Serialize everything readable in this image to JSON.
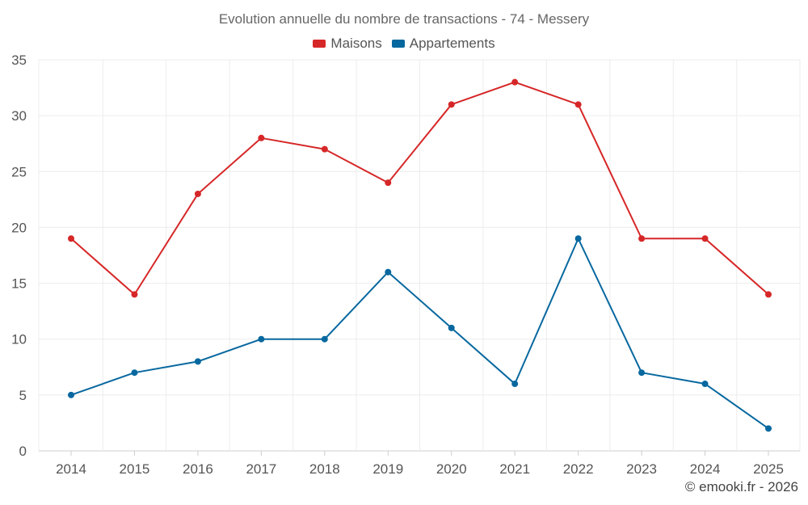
{
  "chart_data": {
    "type": "line",
    "title": "Evolution annuelle du nombre de transactions - 74 - Messery",
    "xlabel": "",
    "ylabel": "",
    "categories": [
      "2014",
      "2015",
      "2016",
      "2017",
      "2018",
      "2019",
      "2020",
      "2021",
      "2022",
      "2023",
      "2024",
      "2025"
    ],
    "ylim": [
      0,
      35
    ],
    "yticks": [
      0,
      5,
      10,
      15,
      20,
      25,
      30,
      35
    ],
    "grid": true,
    "legend_position": "top-center",
    "series": [
      {
        "name": "Maisons",
        "color": "#d62728",
        "values": [
          19,
          14,
          23,
          28,
          27,
          24,
          31,
          33,
          31,
          19,
          19,
          14
        ]
      },
      {
        "name": "Appartements",
        "color": "#07689f",
        "values": [
          5,
          7,
          8,
          10,
          10,
          16,
          11,
          6,
          19,
          7,
          6,
          2
        ]
      }
    ]
  },
  "credit": "© emooki.fr - 2026"
}
